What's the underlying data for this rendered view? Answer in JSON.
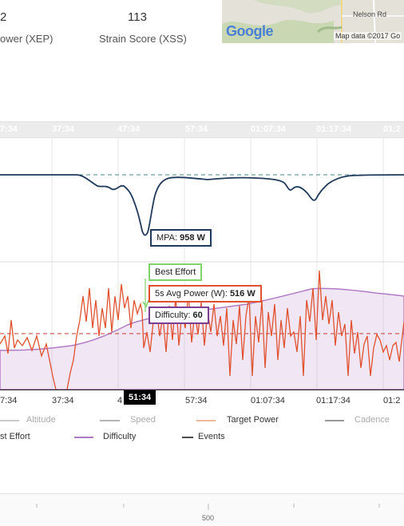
{
  "stats": [
    {
      "value": "2",
      "label": "ower (XEP)"
    },
    {
      "value": "113",
      "label": "Strain Score (XSS)"
    }
  ],
  "map": {
    "road_label": "Nelson Rd",
    "logo": "Google",
    "attribution": "Map data ©2017 Go"
  },
  "timeline": {
    "ticks": [
      "7:34",
      "37:34",
      "47:34",
      "57:34",
      "01:07:34",
      "01:17:34",
      "01:2"
    ]
  },
  "mpa_chart": {
    "callout_label": "MPA: ",
    "callout_value": "958 W"
  },
  "power_chart": {
    "best_effort_label": "Best Effort",
    "avg_power_label": "5s Avg Power (W): ",
    "avg_power_value": "516 W",
    "difficulty_label": "Difficulty: ",
    "difficulty_value": "60"
  },
  "x_axis": {
    "ticks": [
      "7:34",
      "37:34",
      "4",
      "57:34",
      "01:07:34",
      "01:17:34",
      "01:2"
    ],
    "cursor_time": "51:34"
  },
  "legend": {
    "row1": [
      "Altitude",
      "Speed",
      "Target Power",
      "Cadence"
    ],
    "row2": [
      "st Effort",
      "Difficulty",
      "Events"
    ]
  },
  "colors": {
    "altitude": "#c8c8c8",
    "speed": "#b4b4b4",
    "target_power": "#f0b79a",
    "cadence": "#9a9a9a",
    "best_effort": "#7fd36a",
    "difficulty": "#b07bc4",
    "events": "#4a4a4a",
    "mpa": "#1f3a5a",
    "power": "#e0522f"
  },
  "bottom_axis": {
    "tick_label": "500"
  }
}
